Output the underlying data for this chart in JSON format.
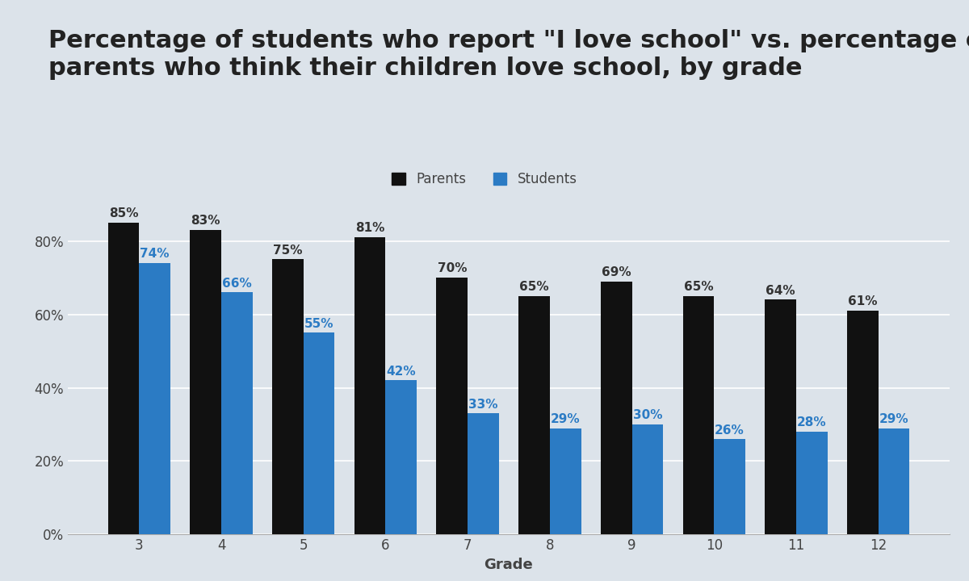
{
  "title_line1": "Percentage of students who report \"I love school\" vs. percentage of",
  "title_line2": "parents who think their children love school, by grade",
  "xlabel": "Grade",
  "grades": [
    3,
    4,
    5,
    6,
    7,
    8,
    9,
    10,
    11,
    12
  ],
  "parents": [
    0.85,
    0.83,
    0.75,
    0.81,
    0.7,
    0.65,
    0.69,
    0.65,
    0.64,
    0.61
  ],
  "students": [
    0.74,
    0.66,
    0.55,
    0.42,
    0.33,
    0.29,
    0.3,
    0.26,
    0.28,
    0.29
  ],
  "parents_labels": [
    "85%",
    "83%",
    "75%",
    "81%",
    "70%",
    "65%",
    "69%",
    "65%",
    "64%",
    "61%"
  ],
  "students_labels": [
    "74%",
    "66%",
    "55%",
    "42%",
    "33%",
    "29%",
    "30%",
    "26%",
    "28%",
    "29%"
  ],
  "parent_color": "#111111",
  "student_color": "#2b7bc4",
  "background_color": "#dce3ea",
  "yticks": [
    0.0,
    0.2,
    0.4,
    0.6,
    0.8
  ],
  "ytick_labels": [
    "0%",
    "20%",
    "40%",
    "60%",
    "80%"
  ],
  "ylim": [
    0,
    0.95
  ],
  "legend_labels": [
    "Parents",
    "Students"
  ],
  "bar_width": 0.38,
  "title_fontsize": 22,
  "axis_label_fontsize": 13,
  "bar_label_fontsize": 11,
  "tick_fontsize": 12,
  "legend_fontsize": 12
}
